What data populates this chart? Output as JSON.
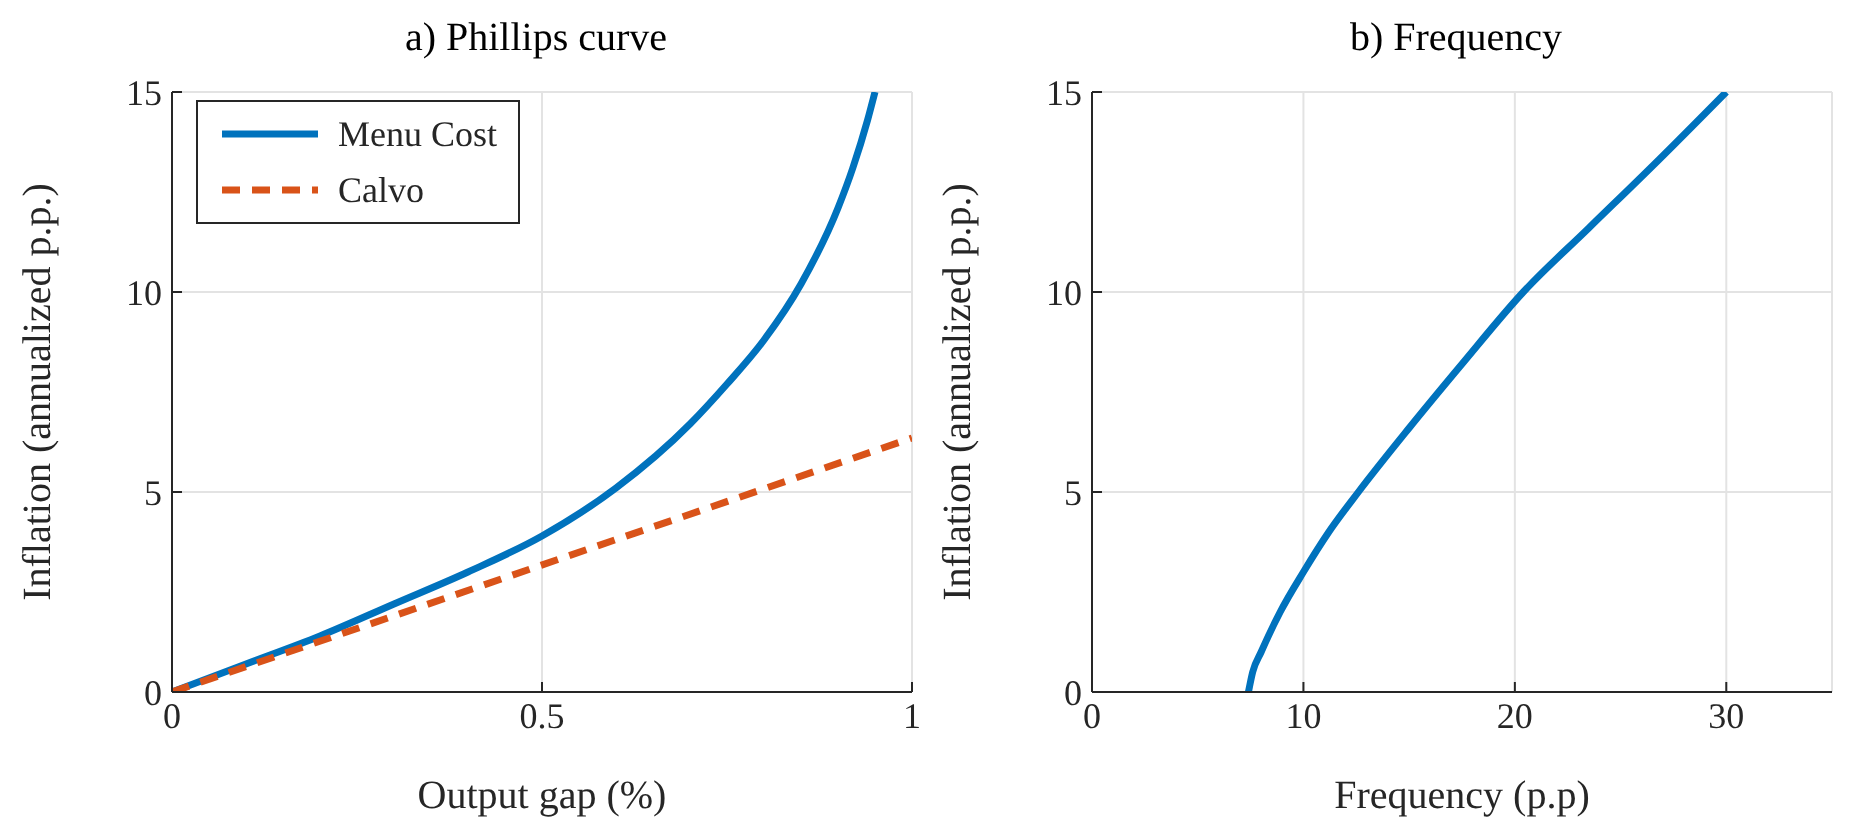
{
  "chart_data": [
    {
      "type": "line",
      "title": "a) Phillips curve",
      "xlabel": "Output gap (%)",
      "ylabel": "Inflation (annualized p.p.)",
      "xlim": [
        0,
        1
      ],
      "xticks": [
        0,
        0.5,
        1
      ],
      "ylim": [
        0,
        15
      ],
      "yticks": [
        0,
        5,
        10,
        15
      ],
      "grid": true,
      "legend": "top left",
      "series": [
        {
          "name": "Menu Cost",
          "color": "#0072bd",
          "x": [
            0,
            0.1,
            0.2,
            0.3,
            0.4,
            0.5,
            0.6,
            0.7,
            0.75,
            0.8,
            0.85,
            0.9,
            0.92,
            0.94,
            0.95
          ],
          "values": [
            0,
            0.7,
            1.4,
            2.2,
            3,
            3.9,
            5.1,
            6.7,
            7.7,
            8.8,
            10.2,
            12.1,
            13.1,
            14.3,
            15
          ]
        },
        {
          "name": "Calvo",
          "color": "#d95319",
          "line_style": "dashed",
          "x": [
            0,
            1
          ],
          "values": [
            0,
            6.35
          ]
        }
      ]
    },
    {
      "type": "line",
      "title": "b) Frequency",
      "xlabel": "Frequency (p.p)",
      "ylabel": "Inflation (annualized p.p.)",
      "xlim": [
        0,
        35
      ],
      "xticks": [
        0,
        10,
        20,
        30
      ],
      "ylim": [
        0,
        15
      ],
      "yticks": [
        0,
        5,
        10,
        15
      ],
      "grid": true,
      "series": [
        {
          "color": "#0072bd",
          "x": [
            7.4,
            7.6,
            8.0,
            8.9,
            10.0,
            11.2,
            12.6,
            15,
            17.5,
            20.4,
            23.5,
            26.8,
            30
          ],
          "values": [
            0,
            0.5,
            1,
            2,
            3,
            4,
            5,
            6.6,
            8.2,
            10,
            11.6,
            13.3,
            15
          ]
        }
      ]
    }
  ]
}
